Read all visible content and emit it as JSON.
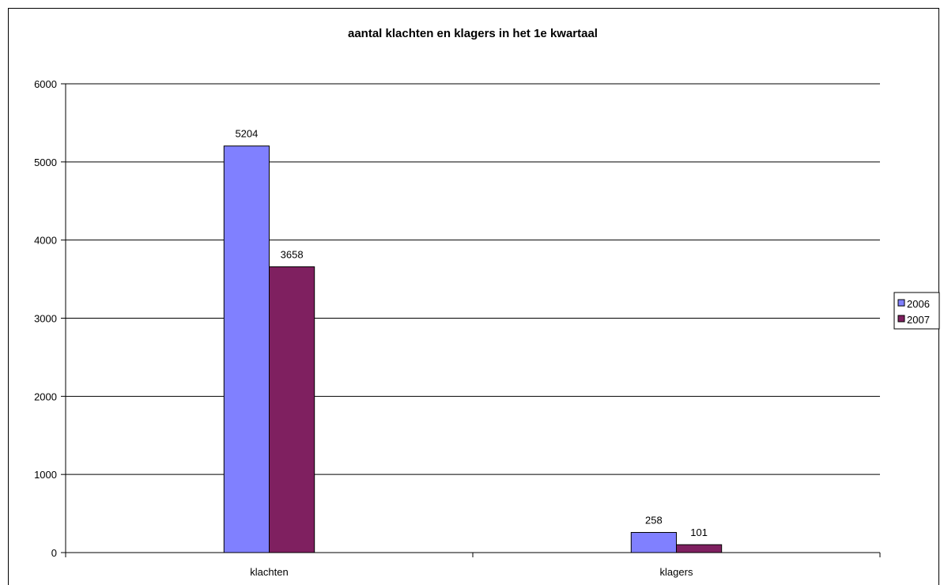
{
  "chart_data": {
    "type": "bar",
    "title": "aantal klachten en klagers in het 1e kwartaal",
    "categories": [
      "klachten",
      "klagers"
    ],
    "series": [
      {
        "name": "2006",
        "values": [
          5204,
          258
        ]
      },
      {
        "name": "2007",
        "values": [
          3658,
          101
        ]
      }
    ],
    "ylim": [
      0,
      6000
    ],
    "yticks": [
      "0",
      "1000",
      "2000",
      "3000",
      "4000",
      "5000",
      "6000"
    ],
    "data_labels": [
      [
        "5204",
        "258"
      ],
      [
        "3658",
        "101"
      ]
    ],
    "grid": true,
    "legend_position": "right",
    "colors": [
      "#8080ff",
      "#7f2060"
    ]
  }
}
